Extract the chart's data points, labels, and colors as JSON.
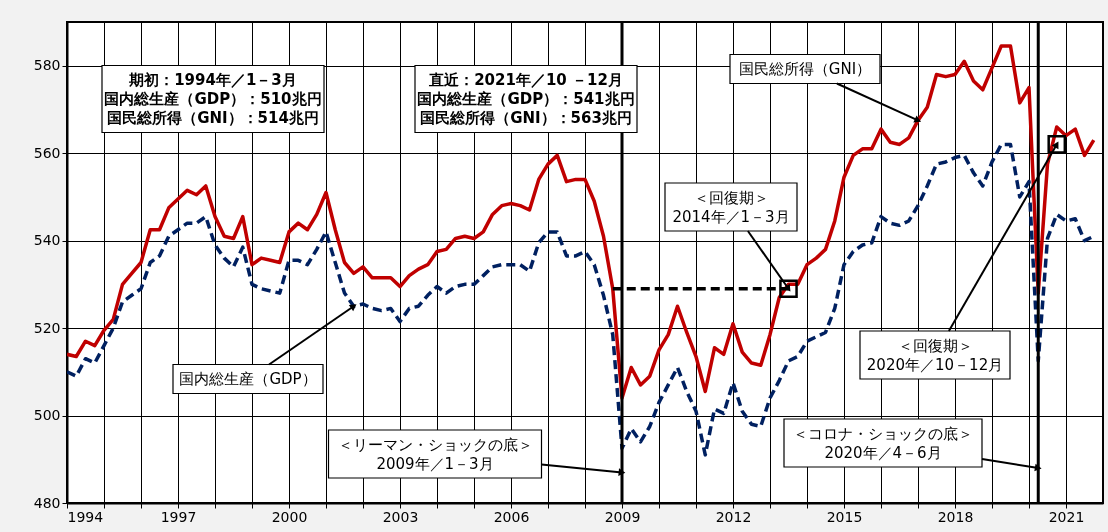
{
  "chart_data": {
    "type": "line",
    "x": [
      1994,
      1994.25,
      1994.5,
      1994.75,
      1995,
      1995.25,
      1995.5,
      1995.75,
      1996,
      1996.25,
      1996.5,
      1996.75,
      1997,
      1997.25,
      1997.5,
      1997.75,
      1998,
      1998.25,
      1998.5,
      1998.75,
      1999,
      1999.25,
      1999.5,
      1999.75,
      2000,
      2000.25,
      2000.5,
      2000.75,
      2001,
      2001.25,
      2001.5,
      2001.75,
      2002,
      2002.25,
      2002.5,
      2002.75,
      2003,
      2003.25,
      2003.5,
      2003.75,
      2004,
      2004.25,
      2004.5,
      2004.75,
      2005,
      2005.25,
      2005.5,
      2005.75,
      2006,
      2006.25,
      2006.5,
      2006.75,
      2007,
      2007.25,
      2007.5,
      2007.75,
      2008,
      2008.25,
      2008.5,
      2008.75,
      2009,
      2009.25,
      2009.5,
      2009.75,
      2010,
      2010.25,
      2010.5,
      2010.75,
      2011,
      2011.25,
      2011.5,
      2011.75,
      2012,
      2012.25,
      2012.5,
      2012.75,
      2013,
      2013.25,
      2013.5,
      2013.75,
      2014,
      2014.25,
      2014.5,
      2014.75,
      2015,
      2015.25,
      2015.5,
      2015.75,
      2016,
      2016.25,
      2016.5,
      2016.75,
      2017,
      2017.25,
      2017.5,
      2017.75,
      2018,
      2018.25,
      2018.5,
      2018.75,
      2019,
      2019.25,
      2019.5,
      2019.75,
      2020,
      2020.25,
      2020.5,
      2020.75,
      2021,
      2021.25,
      2021.5,
      2021.75
    ],
    "series": [
      {
        "name": "国民総所得（GNI）",
        "color": "#c00000",
        "values": [
          514,
          513.5,
          517,
          516,
          519.5,
          522,
          530,
          532.5,
          535,
          542.5,
          542.5,
          547.5,
          549.5,
          551.5,
          550.5,
          552.5,
          545.5,
          541,
          540.5,
          545.5,
          534.5,
          536,
          535.5,
          535,
          542,
          544,
          542.5,
          546,
          551,
          542.5,
          535,
          532.5,
          534,
          531.5,
          531.5,
          531.5,
          529.5,
          532,
          533.5,
          534.5,
          537.5,
          538,
          540.5,
          541,
          540.5,
          542,
          546,
          548,
          548.5,
          548,
          547,
          554,
          557.5,
          559.5,
          553.5,
          554,
          554,
          549,
          541,
          529,
          504,
          511,
          507,
          509,
          515,
          518.5,
          525,
          519,
          513.5,
          505.5,
          515.5,
          514,
          521,
          514.5,
          512,
          511.5,
          518.5,
          527,
          530,
          530,
          534.5,
          536,
          538,
          544.5,
          554.5,
          559.5,
          561,
          561,
          565.5,
          562.5,
          562,
          563.5,
          567.5,
          570.5,
          578,
          577.5,
          578,
          581,
          576.5,
          574.5,
          579.5,
          584.5,
          584.5,
          571.5,
          575,
          528,
          557.5,
          566,
          564,
          565.5,
          559.5,
          563
        ]
      },
      {
        "name": "国内総生産（GDP）",
        "color": "#002060",
        "line_style": "dashed",
        "values": [
          510,
          509,
          513,
          512,
          516,
          520,
          526,
          527.5,
          529,
          535,
          536.5,
          541,
          542.5,
          544,
          544,
          545.5,
          539,
          536,
          534,
          538.5,
          530,
          529,
          528.5,
          528,
          535.5,
          535.5,
          534.5,
          538,
          542,
          535,
          528,
          525,
          525.5,
          524.5,
          524,
          524.5,
          521.5,
          524.5,
          525,
          527.5,
          529.5,
          528,
          529.5,
          530,
          530,
          532,
          534,
          534.5,
          534.5,
          534.5,
          533,
          539.5,
          542,
          542,
          536.5,
          536.5,
          537.5,
          534.5,
          527.5,
          518.5,
          492.5,
          497,
          494,
          497.5,
          503,
          507,
          511,
          505.5,
          501,
          491,
          501.5,
          500.5,
          507.5,
          501,
          498,
          497.5,
          504,
          508,
          512.5,
          513.5,
          517,
          518,
          519,
          524.5,
          534.5,
          537.5,
          539,
          539.5,
          545.5,
          544,
          543.5,
          544.5,
          548,
          552.5,
          557.5,
          558,
          559,
          559.5,
          555.5,
          552.5,
          558,
          562,
          562,
          550,
          553.5,
          512.5,
          540.5,
          546,
          544.5,
          545,
          540,
          541
        ]
      },
      {
        "type": "line",
        "x": [
          2008.75,
          2013.5
        ],
        "values": [
          529,
          529
        ],
        "color": "#000000",
        "line_style": "dashed"
      },
      {
        "type": "scatter",
        "x": [
          2013.5,
          2020.75
        ],
        "values": [
          529,
          562
        ],
        "color": "#000000",
        "marker": "square"
      }
    ],
    "xlim": [
      1994,
      2022
    ],
    "xticks": [
      1994,
      {
        "value": 1995,
        "label": null
      },
      {
        "value": 1996,
        "label": null
      },
      1997,
      {
        "value": 1998,
        "label": null
      },
      {
        "value": 1999,
        "label": null
      },
      2000,
      {
        "value": 2001,
        "label": null
      },
      {
        "value": 2002,
        "label": null
      },
      2003,
      {
        "value": 2004,
        "label": null
      },
      {
        "value": 2005,
        "label": null
      },
      2006,
      {
        "value": 2007,
        "label": null
      },
      {
        "value": 2008,
        "label": null
      },
      2009,
      {
        "value": 2010,
        "label": null
      },
      {
        "value": 2011,
        "label": null
      },
      2012,
      {
        "value": 2013,
        "label": null
      },
      {
        "value": 2014,
        "label": null
      },
      2015,
      {
        "value": 2016,
        "label": null
      },
      {
        "value": 2017,
        "label": null
      },
      2018,
      {
        "value": 2019,
        "label": null
      },
      {
        "value": 2020,
        "label": null
      },
      2021
    ],
    "ylim": [
      480,
      590
    ],
    "yticks": [
      480,
      500,
      520,
      540,
      560,
      580
    ],
    "grid": true,
    "ref_lines": [
      {
        "axis": "x",
        "value": 2009,
        "color": "#000000"
      },
      {
        "axis": "x",
        "value": 2020.25,
        "color": "#000000"
      }
    ],
    "annotations": [
      "期初：1994年／1－3月",
      "国内総生産（GDP）：510兆円",
      "国民総所得（GNI）：514兆円",
      "直近：2021年／10 －12月",
      "国内総生産（GDP）：541兆円",
      "国民総所得（GNI）：563兆円",
      {
        "text": "＜リーマン・ショックの底＞\n2009年／1－3月",
        "x": 2009,
        "y": 487
      },
      {
        "text": "＜回復期＞\n2014年／1－3月",
        "x": 2013.5,
        "y": 529
      },
      {
        "text": "＜回復期＞\n2020年／10－12月",
        "x": 2020.75,
        "y": 562
      },
      {
        "text": "＜コロナ・ショックの底＞\n2020年／4－6月",
        "x": 2020.25,
        "y": 488
      }
    ]
  }
}
